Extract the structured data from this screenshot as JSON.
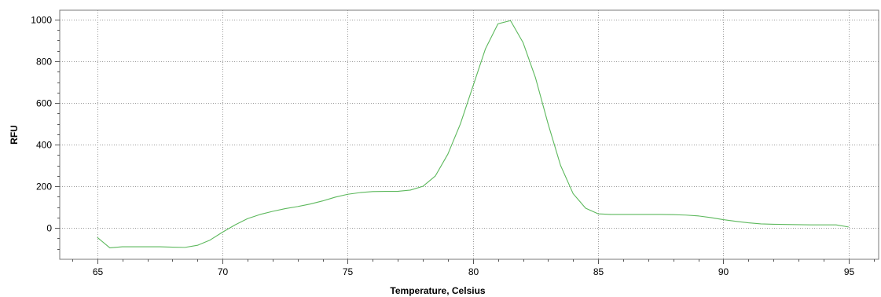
{
  "chart_data": {
    "type": "line",
    "title": "",
    "xlabel": "Temperature, Celsius",
    "ylabel": "RFU",
    "xlim": [
      63.5,
      96.2
    ],
    "ylim": [
      -150,
      1045
    ],
    "x_ticks": [
      65,
      70,
      75,
      80,
      85,
      90,
      95
    ],
    "y_ticks": [
      0,
      200,
      400,
      600,
      800,
      1000
    ],
    "x_tick_labels": [
      "65",
      "70",
      "75",
      "80",
      "85",
      "90",
      "95"
    ],
    "y_tick_labels": [
      "0",
      "200",
      "400",
      "600",
      "800",
      "1000"
    ],
    "grid": true,
    "legend": "none",
    "series": [
      {
        "color": "#5cb85c",
        "x": [
          65,
          65.5,
          66,
          66.5,
          67,
          67.5,
          68,
          68.5,
          69,
          69.5,
          70,
          70.5,
          71,
          71.5,
          72,
          72.5,
          73,
          73.5,
          74,
          74.5,
          75,
          75.5,
          76,
          76.5,
          77,
          77.5,
          78,
          78.5,
          79,
          79.5,
          80,
          80.5,
          81,
          81.5,
          82,
          82.5,
          83,
          83.5,
          84,
          84.5,
          85,
          85.5,
          86,
          86.5,
          87,
          87.5,
          88,
          88.5,
          89,
          89.5,
          90,
          90.5,
          91,
          91.5,
          92,
          92.5,
          93,
          93.5,
          94,
          94.5,
          95
        ],
        "y": [
          -45,
          -95,
          -90,
          -90,
          -90,
          -90,
          -92,
          -93,
          -83,
          -58,
          -20,
          15,
          45,
          65,
          80,
          93,
          103,
          115,
          130,
          148,
          162,
          170,
          175,
          176,
          176,
          182,
          200,
          250,
          355,
          500,
          680,
          860,
          980,
          995,
          890,
          720,
          500,
          300,
          165,
          95,
          68,
          65,
          65,
          65,
          65,
          65,
          64,
          62,
          58,
          50,
          40,
          32,
          25,
          20,
          18,
          17,
          16,
          15,
          15,
          15,
          5
        ]
      }
    ]
  }
}
